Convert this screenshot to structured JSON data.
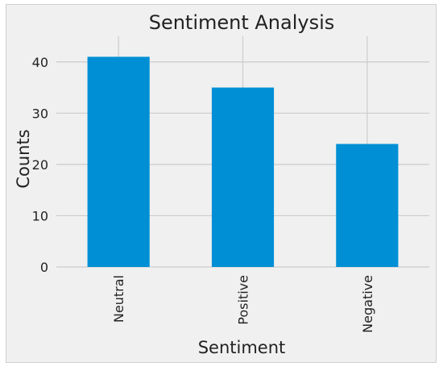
{
  "chart_data": {
    "type": "bar",
    "title": "Sentiment Analysis",
    "xlabel": "Sentiment",
    "ylabel": "Counts",
    "categories": [
      "Neutral",
      "Positive",
      "Negative"
    ],
    "values": [
      41,
      35,
      24
    ],
    "ylim": [
      0,
      45
    ],
    "yticks": [
      0,
      10,
      20,
      30,
      40
    ],
    "grid": true,
    "legend": false,
    "bar_color": "#008fd5",
    "grid_color": "#cbcbcb",
    "background_color": "#f0f0f0"
  }
}
